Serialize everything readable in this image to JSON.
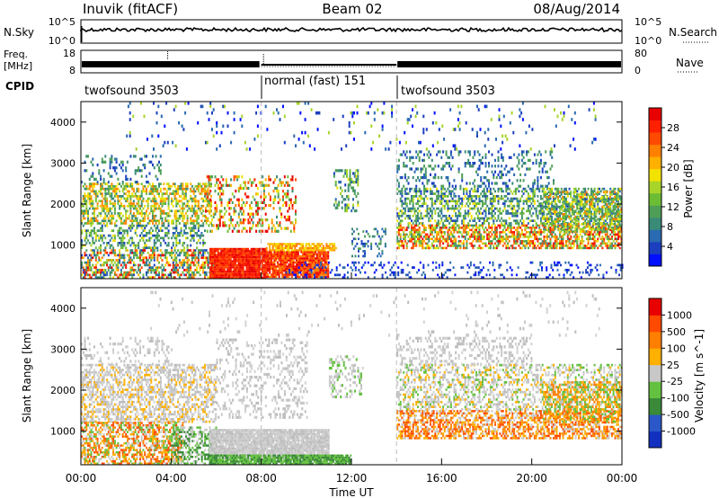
{
  "header": {
    "station": "Inuvik (fitACF)",
    "beam": "Beam 02",
    "date": "08/Aug/2014"
  },
  "panels": {
    "nsky": {
      "left_label": "N.Sky",
      "right_label": "N.Search",
      "left_ticks": [
        "10^5",
        "10^0"
      ],
      "right_ticks": [
        "10^5",
        "10^0"
      ]
    },
    "freq": {
      "left_label_1": "Freq.",
      "left_label_2": "[MHz]",
      "right_label": "Nave",
      "left_ticks": [
        "18",
        "8"
      ],
      "right_ticks": [
        "80",
        "0"
      ]
    },
    "cpid": {
      "label": "CPID",
      "segments": [
        {
          "label": "twofsound 3503",
          "start_hour": 0,
          "end_hour": 8.0
        },
        {
          "label": "normal (fast) 151",
          "start_hour": 8.0,
          "end_hour": 14.0
        },
        {
          "label": "twofsound 3503",
          "start_hour": 14.0,
          "end_hour": 24.0
        }
      ]
    }
  },
  "chart_data": [
    {
      "type": "heatmap",
      "name": "power",
      "ylabel": "Slant Range [km]",
      "ylim": [
        180,
        4500
      ],
      "yticks": [
        1000,
        2000,
        3000,
        4000
      ],
      "xlim_hours": [
        0,
        24
      ],
      "colorbar": {
        "label": "Power [dB]",
        "range": [
          0,
          32
        ],
        "ticks": [
          "4",
          "8",
          "12",
          "16",
          "20",
          "24",
          "28"
        ],
        "colors": [
          "#0010ff",
          "#1b3fbf",
          "#2a6ab0",
          "#3a8a78",
          "#4e9e58",
          "#6cbc34",
          "#a8d42a",
          "#f2e200",
          "#ffb000",
          "#ff8000",
          "#ff4a00",
          "#ff2000",
          "#e80000"
        ]
      }
    },
    {
      "type": "heatmap",
      "name": "velocity",
      "ylabel": "Slant Range [km]",
      "ylim": [
        180,
        4500
      ],
      "yticks": [
        1000,
        2000,
        3000,
        4000
      ],
      "xlim_hours": [
        0,
        24
      ],
      "colorbar": {
        "label": "Velocity [m s^-1]",
        "ticks": [
          "1000",
          "500",
          "100",
          "25",
          "-25",
          "-100",
          "-500",
          "-1000"
        ],
        "colors": [
          "#1230c0",
          "#2a58c8",
          "#3a8a3a",
          "#64c040",
          "#c8c8c8",
          "#ffb000",
          "#ff8000",
          "#ff4a00",
          "#e80000"
        ]
      }
    }
  ],
  "xaxis": {
    "label": "Time UT",
    "ticks": [
      "00:00",
      "04:00",
      "08:00",
      "12:00",
      "16:00",
      "20:00",
      "00:00"
    ]
  }
}
